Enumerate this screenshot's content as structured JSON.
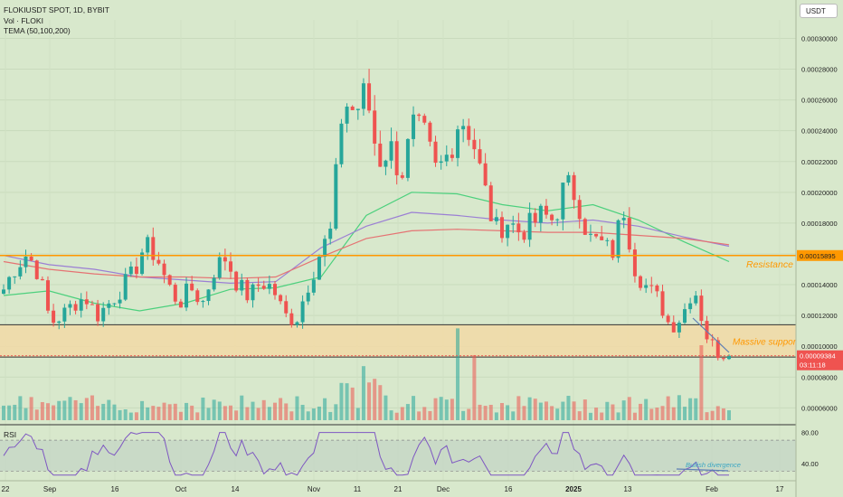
{
  "header": {
    "symbol": "FLOKIUSDT SPOT, 1D, BYBIT",
    "indicators": [
      "Vol · FLOKI",
      "TEMA (50,100,200)"
    ],
    "currency_button": "USDT"
  },
  "colors": {
    "background": "#d8e8cc",
    "up": "#26a69a",
    "down": "#ef5350",
    "resistance": "#ff9800",
    "support_zone": "#f2d9a6",
    "tema50": "#4cd07d",
    "tema100": "#9b7fd4",
    "tema200": "#e57373",
    "rsi": "#7e57c2"
  },
  "annotations": {
    "resistance_label": "Resistance",
    "support_label": "Massive support",
    "divergence_label": "Bullish divergence"
  },
  "price_tags": {
    "resistance": "0.00015895",
    "last_price": "0.00009384",
    "countdown": "03:11:18"
  },
  "rsi_panel": {
    "label": "RSI",
    "ticks": [
      "80.00",
      "40.00"
    ]
  },
  "chart_data": {
    "type": "candlestick",
    "title": "FLOKIUSDT SPOT, 1D, BYBIT",
    "x_ticks": [
      "22",
      "Sep",
      "16",
      "Oct",
      "14",
      "Nov",
      "11",
      "21",
      "Dec",
      "16",
      "2025",
      "13",
      "Feb",
      "17"
    ],
    "y_ticks": [
      "0.00030000",
      "0.00028000",
      "0.00026000",
      "0.00024000",
      "0.00022000",
      "0.00020000",
      "0.00018000",
      "0.00016000",
      "0.00014000",
      "0.00012000",
      "0.00010000",
      "0.00008000",
      "0.00006000"
    ],
    "ylim": [
      5.2e-05,
      0.000312
    ],
    "close_path": [
      0.000137,
      0.000152,
      0.00016,
      0.000148,
      0.000115,
      0.00012,
      0.000128,
      0.000132,
      0.00012,
      0.000128,
      0.000137,
      0.000146,
      0.000165,
      0.00016,
      0.00014,
      0.000128,
      0.000138,
      0.000128,
      0.00015,
      0.000158,
      0.00014,
      0.000132,
      0.000142,
      0.000138,
      0.00012,
      0.000117,
      0.00014,
      0.00016,
      0.000175,
      0.00026,
      0.000252,
      0.000265,
      0.00022,
      0.00023,
      0.000212,
      0.000242,
      0.000235,
      0.000212,
      0.000225,
      0.00025,
      0.000238,
      0.000205,
      0.000175,
      0.000182,
      0.000175,
      0.000178,
      0.000185,
      0.000182,
      0.000205,
      0.000198,
      0.00017,
      0.000167,
      0.00016,
      0.00019,
      0.00015,
      0.000138,
      0.00013,
      0.000112,
      0.00012,
      0.00014,
      0.000108,
      9.6e-05,
      9.4e-05
    ],
    "resistance": 0.00015895,
    "support_zone": [
      9.3e-05,
      0.000114
    ],
    "last_price": 9.384e-05,
    "series": [
      {
        "name": "TEMA 50",
        "color": "#4cd07d",
        "values": [
          0.000133,
          0.000136,
          0.000128,
          0.000123,
          0.000128,
          0.000137,
          0.000138,
          0.000145,
          0.000185,
          0.0002,
          0.000199,
          0.000192,
          0.000188,
          0.000192,
          0.000182,
          0.000168,
          0.000155
        ]
      },
      {
        "name": "TEMA 100",
        "color": "#9b7fd4",
        "values": [
          0.000159,
          0.000153,
          0.00015,
          0.000145,
          0.000143,
          0.000141,
          0.000142,
          0.000164,
          0.000178,
          0.000187,
          0.000185,
          0.000182,
          0.00018,
          0.000182,
          0.000178,
          0.000171,
          0.000165
        ]
      },
      {
        "name": "TEMA 200",
        "color": "#e57373",
        "values": [
          0.000155,
          0.00015,
          0.000147,
          0.000145,
          0.000145,
          0.000144,
          0.000145,
          0.000158,
          0.00017,
          0.000175,
          0.000176,
          0.000175,
          0.000174,
          0.000174,
          0.000172,
          0.00017,
          0.000166
        ]
      }
    ],
    "rsi_range": [
      20,
      90
    ],
    "rsi_bands": [
      70,
      30
    ]
  }
}
